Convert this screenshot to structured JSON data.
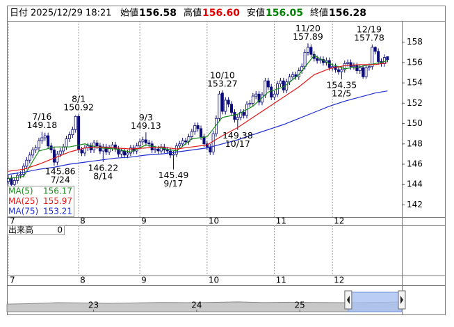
{
  "chart_data": {
    "type": "candlestick",
    "header": {
      "date_label": "日付",
      "date": "2025/12/29 18:21",
      "fields": [
        {
          "name": "始値",
          "value": 156.58,
          "color": "#000000"
        },
        {
          "name": "高値",
          "value": 156.6,
          "value_label": "156.60",
          "color": "#e00000"
        },
        {
          "name": "安値",
          "value": 156.05,
          "color": "#008000"
        },
        {
          "name": "終値",
          "value": 156.28,
          "color": "#000000"
        }
      ]
    },
    "ylim": [
      140.8,
      160.1
    ],
    "yticks": [
      142,
      144,
      146,
      148,
      150,
      152,
      154,
      156,
      158
    ],
    "xlim": [
      -0.45,
      128.7
    ],
    "xticks": [
      {
        "value": 0,
        "label": "7"
      },
      {
        "value": 23,
        "label": "8"
      },
      {
        "value": 43,
        "label": "9"
      },
      {
        "value": 65,
        "label": "10"
      },
      {
        "value": 87,
        "label": "11"
      },
      {
        "value": 106,
        "label": "12"
      }
    ],
    "up_color": "#ffffff",
    "down_color": "#0a0a78",
    "open": [
      144.3,
      144.6,
      144.0,
      144.4,
      144.9,
      145.0,
      145.8,
      146.4,
      146.9,
      147.4,
      147.6,
      148.3,
      148.6,
      148.8,
      147.8,
      147.4,
      146.2,
      147.0,
      147.3,
      147.7,
      148.5,
      148.9,
      149.4,
      150.7,
      147.4,
      147.1,
      147.6,
      147.8,
      147.4,
      148.1,
      147.8,
      147.3,
      147.7,
      147.2,
      147.6,
      147.9,
      147.5,
      147.0,
      147.3,
      146.9,
      147.1,
      147.6,
      147.3,
      147.8,
      148.2,
      148.4,
      148.1,
      148.0,
      147.4,
      147.5,
      147.3,
      147.7,
      147.4,
      147.3,
      146.9,
      147.0,
      147.8,
      148.0,
      148.3,
      148.2,
      148.7,
      149.2,
      149.8,
      149.5,
      148.7,
      148.0,
      147.7,
      147.2,
      149.0,
      150.5,
      153.0,
      151.2,
      152.3,
      151.9,
      151.1,
      150.4,
      150.6,
      151.1,
      150.8,
      151.9,
      152.0,
      152.7,
      152.9,
      152.1,
      152.8,
      154.2,
      153.6,
      152.6,
      152.9,
      153.9,
      154.2,
      153.3,
      154.1,
      154.6,
      154.8,
      154.6,
      155.2,
      155.6,
      157.0,
      157.5,
      156.8,
      156.4,
      156.2,
      156.3,
      156.0,
      156.2,
      155.5,
      155.6,
      155.3,
      155.1,
      155.3,
      155.9,
      156.0,
      155.6,
      155.7,
      155.2,
      155.5,
      154.6,
      155.5,
      155.6,
      157.5,
      157.1,
      156.1,
      155.9,
      156.58
    ],
    "high": [
      144.9,
      144.9,
      144.7,
      145.2,
      145.3,
      146.1,
      146.7,
      147.2,
      147.7,
      147.9,
      148.6,
      149.18,
      149.1,
      149.1,
      148.1,
      147.7,
      147.3,
      147.6,
      148.0,
      148.8,
      149.2,
      149.7,
      150.8,
      150.92,
      147.7,
      147.9,
      148.1,
      148.1,
      148.4,
      148.4,
      148.1,
      148.0,
      148.0,
      147.9,
      148.2,
      148.2,
      147.8,
      147.6,
      147.6,
      147.4,
      147.9,
      147.9,
      148.1,
      148.5,
      148.7,
      149.13,
      148.4,
      148.3,
      147.8,
      147.8,
      148.0,
      148.0,
      147.7,
      147.6,
      147.3,
      148.1,
      148.3,
      148.6,
      148.6,
      149.0,
      149.5,
      150.1,
      150.1,
      149.8,
      149.0,
      148.3,
      148.0,
      149.3,
      150.8,
      153.2,
      153.27,
      152.6,
      152.6,
      152.2,
      151.4,
      150.9,
      151.4,
      151.4,
      152.2,
      152.3,
      153.0,
      153.2,
      153.2,
      153.1,
      154.5,
      154.5,
      153.9,
      153.2,
      154.2,
      154.5,
      154.5,
      154.4,
      154.9,
      155.1,
      155.1,
      155.5,
      155.9,
      157.3,
      157.89,
      157.8,
      157.1,
      156.7,
      156.6,
      156.6,
      156.5,
      156.5,
      155.9,
      155.9,
      155.6,
      155.6,
      156.2,
      156.3,
      156.3,
      156.0,
      156.0,
      155.8,
      155.8,
      155.8,
      155.9,
      157.78,
      157.6,
      157.4,
      156.4,
      156.8,
      156.6
    ],
    "low": [
      144.0,
      143.7,
      143.7,
      144.1,
      144.6,
      144.7,
      145.5,
      146.1,
      146.6,
      147.1,
      147.3,
      148.0,
      148.3,
      147.5,
      147.1,
      145.86,
      145.9,
      146.7,
      147.0,
      147.4,
      148.2,
      148.6,
      149.1,
      147.1,
      146.8,
      146.8,
      147.3,
      147.1,
      147.1,
      147.5,
      147.0,
      146.22,
      146.9,
      146.9,
      147.3,
      147.2,
      146.7,
      146.7,
      146.6,
      146.6,
      146.8,
      147.0,
      147.0,
      147.5,
      147.9,
      147.8,
      147.7,
      147.1,
      147.1,
      147.0,
      147.0,
      147.1,
      147.0,
      146.6,
      145.49,
      146.7,
      147.5,
      147.7,
      147.9,
      147.9,
      148.4,
      148.9,
      149.2,
      148.4,
      147.7,
      147.4,
      146.9,
      146.9,
      148.7,
      150.2,
      150.9,
      150.9,
      151.6,
      150.8,
      150.1,
      149.38,
      150.3,
      150.5,
      150.5,
      151.6,
      151.7,
      152.4,
      151.8,
      151.8,
      152.5,
      153.3,
      152.3,
      152.3,
      152.6,
      153.6,
      153.0,
      153.0,
      153.8,
      154.3,
      154.3,
      154.3,
      154.9,
      155.3,
      156.7,
      156.5,
      156.1,
      155.9,
      155.9,
      155.7,
      155.7,
      155.2,
      155.2,
      155.0,
      154.8,
      154.35,
      155.0,
      155.6,
      155.3,
      155.3,
      154.9,
      154.9,
      154.4,
      154.4,
      155.2,
      155.3,
      156.8,
      155.8,
      155.6,
      155.6,
      156.05
    ],
    "close": [
      144.6,
      144.0,
      144.4,
      144.9,
      145.0,
      145.8,
      146.4,
      146.9,
      147.4,
      147.6,
      148.3,
      148.6,
      148.8,
      147.8,
      147.4,
      146.2,
      147.0,
      147.3,
      147.7,
      148.5,
      148.9,
      149.4,
      150.7,
      147.4,
      147.1,
      147.6,
      147.8,
      147.4,
      148.1,
      147.8,
      147.3,
      147.7,
      147.2,
      147.6,
      147.9,
      147.5,
      147.0,
      147.3,
      146.9,
      147.1,
      147.6,
      147.3,
      147.8,
      148.2,
      148.4,
      148.1,
      148.0,
      147.4,
      147.5,
      147.3,
      147.7,
      147.4,
      147.3,
      146.9,
      147.0,
      147.8,
      148.0,
      148.3,
      148.2,
      148.7,
      149.2,
      149.8,
      149.5,
      148.7,
      148.0,
      147.7,
      147.2,
      149.0,
      150.5,
      152.9,
      151.2,
      152.3,
      151.9,
      151.1,
      150.4,
      150.6,
      151.1,
      150.8,
      151.9,
      152.0,
      152.7,
      152.9,
      152.1,
      152.8,
      154.2,
      153.6,
      152.6,
      152.9,
      153.9,
      154.2,
      153.3,
      154.1,
      154.6,
      154.8,
      154.6,
      155.2,
      155.6,
      157.0,
      157.5,
      156.8,
      156.4,
      156.2,
      156.3,
      156.0,
      156.2,
      155.5,
      155.6,
      155.3,
      155.1,
      155.3,
      155.9,
      156.0,
      155.6,
      155.7,
      155.2,
      155.5,
      154.6,
      155.5,
      155.6,
      157.5,
      157.1,
      156.1,
      155.9,
      156.5,
      156.28
    ],
    "series": [
      {
        "name": "MA(5)",
        "color": "#1a8a1a",
        "x": [
          0,
          5,
          10,
          15,
          20,
          25,
          30,
          35,
          40,
          45,
          50,
          55,
          60,
          65,
          70,
          75,
          80,
          85,
          90,
          95,
          100,
          105,
          110,
          115,
          120,
          124
        ],
        "values": [
          144.6,
          144.8,
          147.3,
          147.7,
          147.7,
          148.0,
          147.6,
          147.5,
          147.2,
          147.9,
          147.6,
          147.3,
          148.5,
          148.7,
          150.6,
          150.9,
          151.7,
          153.1,
          153.6,
          154.8,
          156.7,
          155.9,
          155.4,
          155.6,
          155.9,
          156.17
        ]
      },
      {
        "name": "MA(25)",
        "color": "#e01818",
        "x": [
          0,
          5,
          10,
          15,
          20,
          25,
          30,
          35,
          40,
          45,
          50,
          55,
          60,
          65,
          70,
          75,
          80,
          85,
          90,
          95,
          100,
          105,
          110,
          115,
          120,
          124
        ],
        "values": [
          145.3,
          145.5,
          146.0,
          146.6,
          147.2,
          147.6,
          147.7,
          147.6,
          147.5,
          147.6,
          147.7,
          147.5,
          147.7,
          147.9,
          148.8,
          149.6,
          150.6,
          151.6,
          152.6,
          153.6,
          154.8,
          155.4,
          155.7,
          155.8,
          155.8,
          155.97
        ]
      },
      {
        "name": "MA(75)",
        "color": "#1e2ed0",
        "x": [
          0,
          5,
          10,
          15,
          20,
          25,
          30,
          35,
          40,
          45,
          50,
          55,
          60,
          65,
          70,
          75,
          80,
          85,
          90,
          95,
          100,
          105,
          110,
          115,
          120,
          124
        ],
        "values": [
          145.0,
          145.2,
          145.5,
          145.7,
          146.0,
          146.2,
          146.4,
          146.6,
          146.7,
          146.9,
          147.0,
          147.2,
          147.4,
          147.6,
          148.0,
          148.4,
          148.9,
          149.4,
          149.9,
          150.5,
          151.1,
          151.7,
          152.2,
          152.6,
          153.0,
          153.21
        ]
      }
    ],
    "annotations": [
      {
        "date": "7/16",
        "value": 149.18,
        "x": 11,
        "pos": "above"
      },
      {
        "date": "7/24",
        "value": 145.86,
        "x": 17,
        "pos": "below"
      },
      {
        "date": "8/1",
        "value": 150.92,
        "x": 23,
        "pos": "above"
      },
      {
        "date": "8/14",
        "value": 146.22,
        "x": 31,
        "pos": "below"
      },
      {
        "date": "9/3",
        "value": 149.13,
        "x": 45,
        "pos": "above"
      },
      {
        "date": "9/17",
        "value": 145.49,
        "x": 54,
        "pos": "below"
      },
      {
        "date": "10/10",
        "value": 153.27,
        "x": 70,
        "pos": "above"
      },
      {
        "date": "10/17",
        "value": 149.38,
        "x": 75,
        "pos": "below"
      },
      {
        "date": "11/20",
        "value": 157.89,
        "x": 98,
        "pos": "above"
      },
      {
        "date": "12/5",
        "value": 154.35,
        "x": 109,
        "pos": "below"
      },
      {
        "date": "12/19",
        "value": 157.78,
        "x": 118,
        "pos": "above"
      }
    ],
    "volume": {
      "label": "出来高",
      "value": 0
    },
    "navigator": {
      "type": "area",
      "color": "#c8c8c8",
      "line_color": "#888888",
      "window_color": "#a9c1f2",
      "xlim": [
        2022.16,
        2025.99
      ],
      "ylim": [
        0,
        380
      ],
      "xticks": [
        {
          "value": 2023,
          "label": "23"
        },
        {
          "value": 2024,
          "label": "24"
        },
        {
          "value": 2025,
          "label": "25"
        }
      ],
      "x": [
        2022.16,
        2022.4,
        2022.65,
        2022.9,
        2023.15,
        2023.4,
        2023.65,
        2023.9,
        2024.15,
        2024.4,
        2024.65,
        2024.9,
        2025.15,
        2025.4,
        2025.65,
        2025.99
      ],
      "values": [
        122,
        130,
        145,
        141,
        134,
        141,
        148,
        145,
        150,
        158,
        146,
        152,
        149,
        145,
        147,
        156
      ],
      "window": [
        2025.47,
        2025.99
      ]
    }
  }
}
